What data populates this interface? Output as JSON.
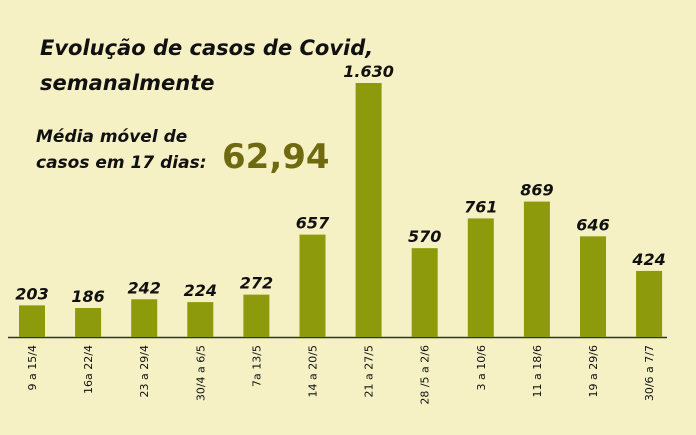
{
  "chart_data": {
    "type": "bar",
    "title": [
      "Evolução de casos de Covid,",
      "semanalmente"
    ],
    "moving_average": {
      "label": [
        "Média móvel de",
        "casos em 17 dias:"
      ],
      "value": 62.94,
      "value_label": "62,94"
    },
    "categories": [
      "9 a 15/4",
      "16a 22/4",
      "23 a 29/4",
      "30/4 a 6/5",
      "7a 13/5",
      "14 a 20/5",
      "21 a 27/5",
      "28 /5 a 2/6",
      "3 a 10/6",
      "11 a 18/6",
      "19 a 29/6",
      "30/6 a 7/7"
    ],
    "values": [
      203,
      186,
      242,
      224,
      272,
      657,
      1630,
      570,
      761,
      869,
      646,
      424
    ],
    "value_labels": [
      "203",
      "186",
      "242",
      "224",
      "272",
      "657",
      "1.630",
      "570",
      "761",
      "869",
      "646",
      "424"
    ],
    "color": "#8c9a0c"
  }
}
